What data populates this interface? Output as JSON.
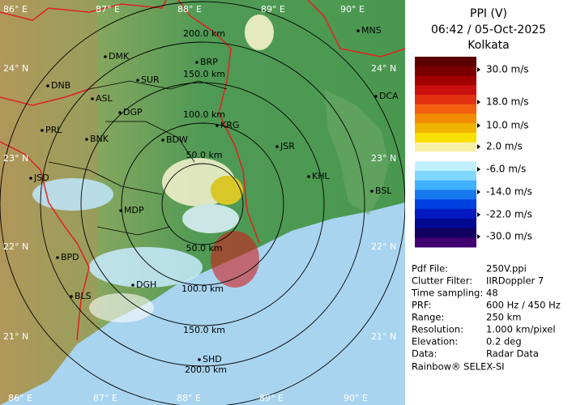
{
  "map": {
    "lon_labels": [
      "86° E",
      "87° E",
      "88° E",
      "89° E",
      "90° E"
    ],
    "lat_labels": [
      "24° N",
      "23° N",
      "22° N",
      "21° N"
    ],
    "ring_labels": [
      "50.0 km",
      "100.0 km",
      "150.0 km",
      "200.0 km"
    ],
    "cities": [
      "MNS",
      "DMK",
      "BRP",
      "DNB",
      "SUR",
      "ASL",
      "DGP",
      "DCA",
      "KRG",
      "PRL",
      "BNK",
      "BDW",
      "JSR",
      "JSD",
      "KHL",
      "BSL",
      "MDP",
      "BPD",
      "DGH",
      "BLS",
      "SHD"
    ]
  },
  "panel": {
    "title": "PPI (V)",
    "timestamp": "06:42 / 05-Oct-2025",
    "station": "Kolkata",
    "legend_colors": [
      "#5a0000",
      "#7a0000",
      "#a00000",
      "#c81010",
      "#e03010",
      "#f06010",
      "#f08c00",
      "#f0b400",
      "#f8e000",
      "#f8f0a8",
      "#ffffff",
      "#c0f0ff",
      "#80d8ff",
      "#40b0ff",
      "#1878f0",
      "#0040e0",
      "#0018c0",
      "#000890",
      "#100060",
      "#400070"
    ],
    "legend_labels": [
      "30.0 m/s",
      "18.0 m/s",
      "10.0 m/s",
      "2.0 m/s",
      "-6.0 m/s",
      "-14.0 m/s",
      "-22.0 m/s",
      "-30.0 m/s"
    ],
    "info": [
      [
        "Pdf File:",
        "250V.ppi"
      ],
      [
        "Clutter Filter:",
        "IIRDoppler 7"
      ],
      [
        "Time sampling:",
        "48"
      ],
      [
        "PRF:",
        "600 Hz / 450 Hz"
      ],
      [
        "Range:",
        "250 km"
      ],
      [
        "Resolution:",
        "1.000 km/pixel"
      ],
      [
        "Elevation:",
        "0.2 deg"
      ],
      [
        "Data:",
        "Radar Data"
      ]
    ],
    "credit": "Rainbow® SELEX-SI"
  }
}
